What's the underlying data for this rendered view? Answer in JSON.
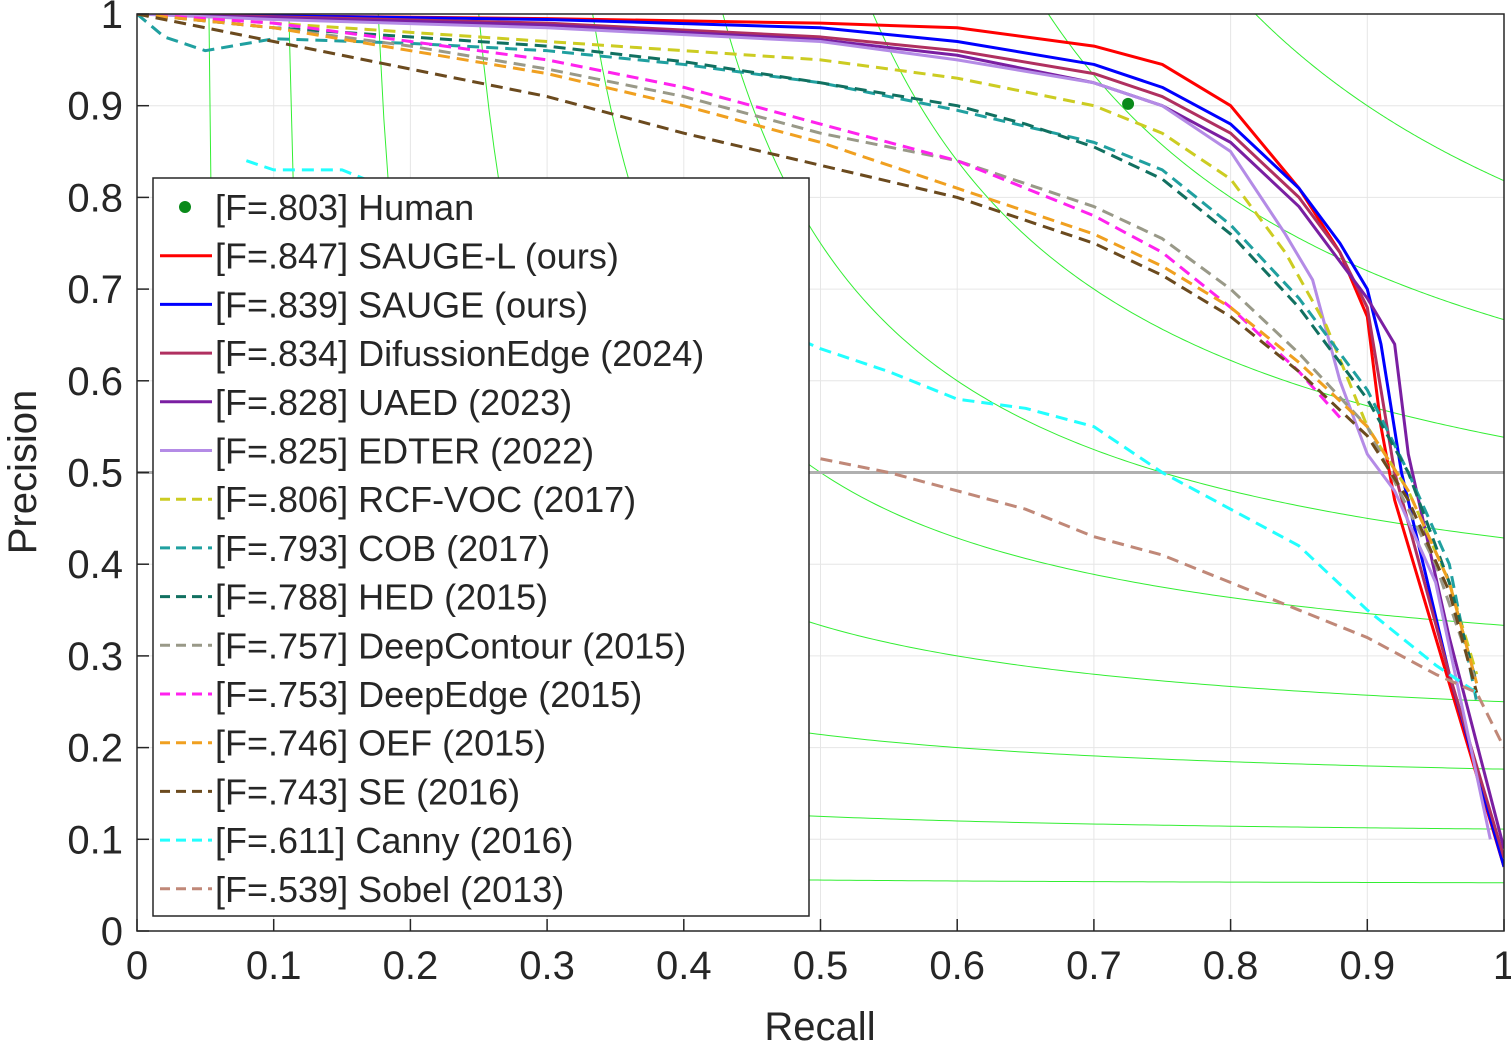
{
  "chart_data": {
    "type": "line",
    "title": "",
    "xlabel": "Recall",
    "ylabel": "Precision",
    "xlim": [
      0,
      1
    ],
    "ylim": [
      0,
      1
    ],
    "grid": true,
    "legend_position": "left",
    "xticks": [
      "0",
      "0.1",
      "0.2",
      "0.3",
      "0.4",
      "0.5",
      "0.6",
      "0.7",
      "0.8",
      "0.9",
      "1"
    ],
    "yticks": [
      "0",
      "0.1",
      "0.2",
      "0.3",
      "0.4",
      "0.5",
      "0.6",
      "0.7",
      "0.8",
      "0.9",
      "1"
    ],
    "iso_f_levels": [
      0.1,
      0.2,
      0.3,
      0.4,
      0.5,
      0.6,
      0.7,
      0.8,
      0.9
    ],
    "iso_f_color": "#33ee33",
    "reference_line": {
      "y": 0.5,
      "color": "#b0b0b0"
    },
    "human_point": {
      "label": "[F=.803] Human",
      "x": 0.725,
      "y": 0.902,
      "color": "#0a8a1a"
    },
    "series": [
      {
        "name": "[F=.847] SAUGE-L (ours)",
        "color": "#ff0000",
        "dash": false,
        "points": [
          [
            0,
            1
          ],
          [
            0.1,
            0.998
          ],
          [
            0.3,
            0.995
          ],
          [
            0.5,
            0.99
          ],
          [
            0.6,
            0.985
          ],
          [
            0.7,
            0.965
          ],
          [
            0.75,
            0.945
          ],
          [
            0.8,
            0.9
          ],
          [
            0.85,
            0.81
          ],
          [
            0.88,
            0.74
          ],
          [
            0.9,
            0.67
          ],
          [
            0.91,
            0.55
          ],
          [
            0.92,
            0.47
          ],
          [
            0.96,
            0.27
          ],
          [
            1.0,
            0.07
          ]
        ]
      },
      {
        "name": "[F=.839] SAUGE (ours)",
        "color": "#0000ff",
        "dash": false,
        "points": [
          [
            0,
            1
          ],
          [
            0.1,
            0.998
          ],
          [
            0.3,
            0.994
          ],
          [
            0.5,
            0.985
          ],
          [
            0.6,
            0.97
          ],
          [
            0.7,
            0.945
          ],
          [
            0.75,
            0.92
          ],
          [
            0.8,
            0.88
          ],
          [
            0.85,
            0.81
          ],
          [
            0.88,
            0.75
          ],
          [
            0.9,
            0.7
          ],
          [
            0.91,
            0.64
          ],
          [
            0.925,
            0.5
          ],
          [
            0.96,
            0.28
          ],
          [
            1.0,
            0.07
          ]
        ]
      },
      {
        "name": "[F=.834] DifussionEdge (2024)",
        "color": "#b03060",
        "dash": false,
        "points": [
          [
            0,
            1
          ],
          [
            0.1,
            0.997
          ],
          [
            0.3,
            0.99
          ],
          [
            0.5,
            0.975
          ],
          [
            0.6,
            0.96
          ],
          [
            0.7,
            0.935
          ],
          [
            0.75,
            0.91
          ],
          [
            0.8,
            0.87
          ],
          [
            0.85,
            0.8
          ],
          [
            0.88,
            0.74
          ],
          [
            0.9,
            0.68
          ],
          [
            0.92,
            0.5
          ],
          [
            0.96,
            0.28
          ],
          [
            1.0,
            0.08
          ]
        ]
      },
      {
        "name": "[F=.828] UAED (2023)",
        "color": "#7a1fa2",
        "dash": false,
        "points": [
          [
            0,
            1
          ],
          [
            0.1,
            0.996
          ],
          [
            0.3,
            0.988
          ],
          [
            0.5,
            0.972
          ],
          [
            0.6,
            0.955
          ],
          [
            0.7,
            0.925
          ],
          [
            0.75,
            0.9
          ],
          [
            0.8,
            0.86
          ],
          [
            0.85,
            0.79
          ],
          [
            0.88,
            0.73
          ],
          [
            0.9,
            0.69
          ],
          [
            0.92,
            0.64
          ],
          [
            0.93,
            0.52
          ],
          [
            0.96,
            0.32
          ],
          [
            1.0,
            0.09
          ]
        ]
      },
      {
        "name": "[F=.825] EDTER (2022)",
        "color": "#b48be6",
        "dash": false,
        "points": [
          [
            0,
            1
          ],
          [
            0.1,
            0.994
          ],
          [
            0.3,
            0.985
          ],
          [
            0.5,
            0.97
          ],
          [
            0.6,
            0.95
          ],
          [
            0.7,
            0.925
          ],
          [
            0.75,
            0.9
          ],
          [
            0.8,
            0.85
          ],
          [
            0.84,
            0.76
          ],
          [
            0.86,
            0.71
          ],
          [
            0.88,
            0.6
          ],
          [
            0.9,
            0.52
          ],
          [
            0.92,
            0.48
          ],
          [
            0.95,
            0.38
          ],
          [
            0.99,
            0.1
          ]
        ]
      },
      {
        "name": "[F=.806] RCF-VOC (2017)",
        "color": "#cccc22",
        "dash": true,
        "points": [
          [
            0,
            1
          ],
          [
            0.1,
            0.99
          ],
          [
            0.3,
            0.97
          ],
          [
            0.5,
            0.95
          ],
          [
            0.6,
            0.93
          ],
          [
            0.7,
            0.9
          ],
          [
            0.75,
            0.87
          ],
          [
            0.8,
            0.82
          ],
          [
            0.84,
            0.74
          ],
          [
            0.87,
            0.66
          ],
          [
            0.9,
            0.55
          ],
          [
            0.93,
            0.48
          ],
          [
            0.96,
            0.38
          ],
          [
            0.98,
            0.28
          ]
        ]
      },
      {
        "name": "[F=.793] COB (2017)",
        "color": "#20a0a0",
        "dash": true,
        "points": [
          [
            0,
            1
          ],
          [
            0.02,
            0.975
          ],
          [
            0.05,
            0.96
          ],
          [
            0.1,
            0.973
          ],
          [
            0.2,
            0.968
          ],
          [
            0.3,
            0.96
          ],
          [
            0.4,
            0.945
          ],
          [
            0.5,
            0.925
          ],
          [
            0.6,
            0.895
          ],
          [
            0.7,
            0.86
          ],
          [
            0.75,
            0.83
          ],
          [
            0.8,
            0.77
          ],
          [
            0.85,
            0.69
          ],
          [
            0.9,
            0.59
          ],
          [
            0.93,
            0.5
          ],
          [
            0.96,
            0.4
          ],
          [
            0.98,
            0.25
          ]
        ]
      },
      {
        "name": "[F=.788] HED (2015)",
        "color": "#117060",
        "dash": true,
        "points": [
          [
            0,
            1
          ],
          [
            0.1,
            0.985
          ],
          [
            0.2,
            0.975
          ],
          [
            0.3,
            0.965
          ],
          [
            0.4,
            0.948
          ],
          [
            0.5,
            0.925
          ],
          [
            0.6,
            0.9
          ],
          [
            0.65,
            0.88
          ],
          [
            0.7,
            0.855
          ],
          [
            0.75,
            0.82
          ],
          [
            0.8,
            0.76
          ],
          [
            0.85,
            0.68
          ],
          [
            0.9,
            0.58
          ],
          [
            0.93,
            0.5
          ],
          [
            0.96,
            0.38
          ],
          [
            0.98,
            0.27
          ]
        ]
      },
      {
        "name": "[F=.757] DeepContour (2015)",
        "color": "#999988",
        "dash": true,
        "points": [
          [
            0,
            1
          ],
          [
            0.1,
            0.985
          ],
          [
            0.2,
            0.965
          ],
          [
            0.3,
            0.94
          ],
          [
            0.4,
            0.91
          ],
          [
            0.5,
            0.87
          ],
          [
            0.6,
            0.84
          ],
          [
            0.7,
            0.79
          ],
          [
            0.75,
            0.755
          ],
          [
            0.8,
            0.7
          ],
          [
            0.85,
            0.63
          ],
          [
            0.9,
            0.55
          ],
          [
            0.92,
            0.49
          ],
          [
            0.95,
            0.4
          ],
          [
            0.98,
            0.27
          ]
        ]
      },
      {
        "name": "[F=.753] DeepEdge (2015)",
        "color": "#ff22ee",
        "dash": true,
        "points": [
          [
            0,
            1
          ],
          [
            0.1,
            0.99
          ],
          [
            0.2,
            0.97
          ],
          [
            0.3,
            0.95
          ],
          [
            0.4,
            0.92
          ],
          [
            0.5,
            0.88
          ],
          [
            0.6,
            0.84
          ],
          [
            0.7,
            0.78
          ],
          [
            0.75,
            0.74
          ],
          [
            0.8,
            0.68
          ],
          [
            0.85,
            0.61
          ],
          [
            0.88,
            0.56
          ]
        ]
      },
      {
        "name": "[F=.746] OEF (2015)",
        "color": "#f0a020",
        "dash": true,
        "points": [
          [
            0,
            1
          ],
          [
            0.1,
            0.985
          ],
          [
            0.2,
            0.96
          ],
          [
            0.3,
            0.935
          ],
          [
            0.4,
            0.9
          ],
          [
            0.5,
            0.86
          ],
          [
            0.6,
            0.81
          ],
          [
            0.7,
            0.76
          ],
          [
            0.75,
            0.725
          ],
          [
            0.8,
            0.68
          ],
          [
            0.85,
            0.62
          ],
          [
            0.9,
            0.55
          ],
          [
            0.93,
            0.48
          ],
          [
            0.96,
            0.38
          ],
          [
            0.98,
            0.27
          ]
        ]
      },
      {
        "name": "[F=.743] SE (2016)",
        "color": "#6b4a1e",
        "dash": true,
        "points": [
          [
            0,
            1
          ],
          [
            0.1,
            0.97
          ],
          [
            0.2,
            0.94
          ],
          [
            0.3,
            0.91
          ],
          [
            0.4,
            0.87
          ],
          [
            0.5,
            0.835
          ],
          [
            0.6,
            0.8
          ],
          [
            0.7,
            0.75
          ],
          [
            0.75,
            0.715
          ],
          [
            0.8,
            0.67
          ],
          [
            0.85,
            0.61
          ],
          [
            0.9,
            0.54
          ],
          [
            0.93,
            0.47
          ],
          [
            0.96,
            0.37
          ],
          [
            0.98,
            0.26
          ]
        ]
      },
      {
        "name": "[F=.611] Canny (2016)",
        "color": "#22ffff",
        "dash": true,
        "points": [
          [
            0.08,
            0.84
          ],
          [
            0.1,
            0.83
          ],
          [
            0.15,
            0.83
          ],
          [
            0.2,
            0.8
          ],
          [
            0.3,
            0.76
          ],
          [
            0.4,
            0.7
          ],
          [
            0.5,
            0.635
          ],
          [
            0.55,
            0.61
          ],
          [
            0.6,
            0.58
          ],
          [
            0.65,
            0.57
          ],
          [
            0.7,
            0.55
          ],
          [
            0.75,
            0.5
          ],
          [
            0.8,
            0.46
          ],
          [
            0.85,
            0.42
          ],
          [
            0.9,
            0.35
          ],
          [
            0.95,
            0.29
          ],
          [
            0.98,
            0.26
          ]
        ]
      },
      {
        "name": "[F=.539] Sobel (2013)",
        "color": "#c08878",
        "dash": true,
        "points": [
          [
            0.5,
            0.515
          ],
          [
            0.55,
            0.5
          ],
          [
            0.6,
            0.48
          ],
          [
            0.65,
            0.46
          ],
          [
            0.7,
            0.43
          ],
          [
            0.75,
            0.41
          ],
          [
            0.8,
            0.38
          ],
          [
            0.85,
            0.35
          ],
          [
            0.9,
            0.32
          ],
          [
            0.95,
            0.28
          ],
          [
            0.98,
            0.26
          ],
          [
            1.0,
            0.2
          ]
        ]
      }
    ]
  }
}
